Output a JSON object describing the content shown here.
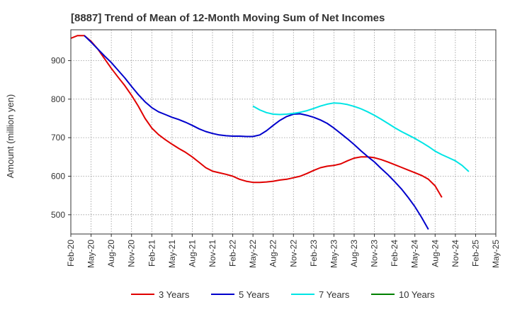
{
  "chart_data": {
    "type": "line",
    "title": "[8887]  Trend of Mean of 12-Month Moving Sum of Net Incomes",
    "ylabel": "Amount (million yen)",
    "xlabel": "",
    "ylim": [
      450,
      980
    ],
    "yticks": [
      500,
      600,
      700,
      800,
      900
    ],
    "x_start": "Feb-20",
    "x_end": "May-25",
    "months_total": 63,
    "x_tick_labels": [
      "Feb-20",
      "May-20",
      "Aug-20",
      "Nov-20",
      "Feb-21",
      "May-21",
      "Aug-21",
      "Nov-21",
      "Feb-22",
      "May-22",
      "Aug-22",
      "Nov-22",
      "Feb-23",
      "May-23",
      "Aug-23",
      "Nov-23",
      "Feb-24",
      "May-24",
      "Aug-24",
      "Nov-24",
      "Feb-25",
      "May-25"
    ],
    "grid": true,
    "legend_position": "bottom",
    "series": [
      {
        "name": "3 Years",
        "color": "#e00000",
        "start_month": 0,
        "values": [
          958,
          965,
          965,
          950,
          930,
          905,
          880,
          857,
          835,
          810,
          782,
          750,
          725,
          708,
          695,
          683,
          672,
          662,
          650,
          636,
          622,
          613,
          609,
          605,
          600,
          592,
          587,
          584,
          584,
          585,
          587,
          590,
          592,
          596,
          600,
          607,
          615,
          622,
          626,
          628,
          632,
          640,
          647,
          650,
          650,
          648,
          643,
          637,
          630,
          623,
          616,
          609,
          602,
          592,
          575,
          545
        ]
      },
      {
        "name": "5 Years",
        "color": "#0000cc",
        "start_month": 0,
        "values": [
          null,
          null,
          965,
          948,
          930,
          912,
          895,
          875,
          855,
          833,
          812,
          793,
          778,
          767,
          760,
          753,
          747,
          740,
          732,
          723,
          716,
          711,
          707,
          705,
          704,
          704,
          703,
          703,
          707,
          718,
          732,
          745,
          755,
          761,
          762,
          758,
          753,
          746,
          737,
          725,
          711,
          697,
          682,
          666,
          651,
          637,
          620,
          604,
          586,
          567,
          545,
          521,
          493,
          462
        ]
      },
      {
        "name": "7 Years",
        "color": "#00e5e5",
        "start_month": 27,
        "values": [
          782,
          772,
          765,
          761,
          760,
          761,
          763,
          766,
          770,
          776,
          782,
          787,
          790,
          789,
          786,
          781,
          775,
          767,
          758,
          748,
          737,
          726,
          716,
          707,
          698,
          688,
          677,
          665,
          656,
          648,
          640,
          628,
          612
        ]
      },
      {
        "name": "10 Years",
        "color": "#008000",
        "start_month": 0,
        "values": []
      }
    ]
  }
}
